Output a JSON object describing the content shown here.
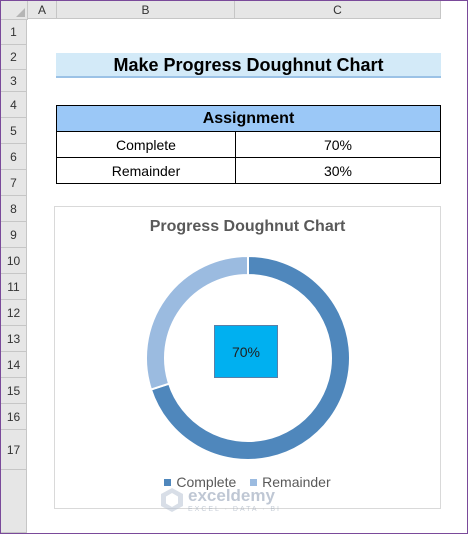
{
  "sheet": {
    "column_headers": [
      "A",
      "B",
      "C"
    ],
    "row_numbers": [
      "1",
      "2",
      "3",
      "4",
      "5",
      "6",
      "7",
      "8",
      "9",
      "10",
      "11",
      "12",
      "13",
      "14",
      "15",
      "16",
      "17"
    ],
    "title": "Make Progress Doughnut Chart",
    "table": {
      "header": "Assignment",
      "rows": [
        {
          "label": "Complete",
          "value": "70%"
        },
        {
          "label": "Remainder",
          "value": "30%"
        }
      ]
    }
  },
  "chart_data": {
    "type": "doughnut",
    "title": "Progress Doughnut Chart",
    "categories": [
      "Complete",
      "Remainder"
    ],
    "values": [
      70,
      30
    ],
    "colors": [
      "#4f87bc",
      "#9bbbe0"
    ],
    "center_label": "70%",
    "legend_position": "bottom"
  },
  "watermark": {
    "name": "exceldemy",
    "subtitle": "EXCEL · DATA · BI"
  }
}
